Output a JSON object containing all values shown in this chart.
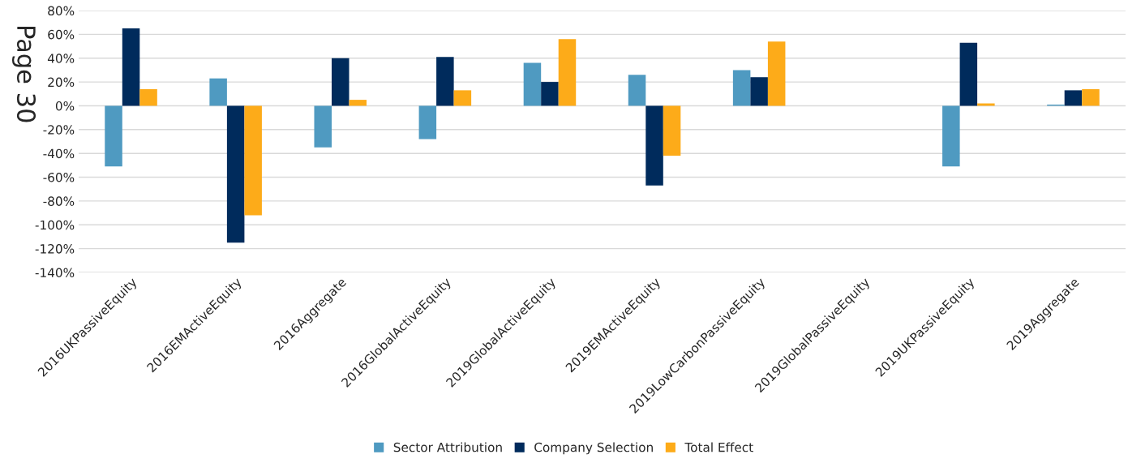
{
  "chart_data": {
    "type": "bar",
    "categories": [
      "2016UKPassiveEquity",
      "2016EMActiveEquity",
      "2016Aggregate",
      "2016GlobalActiveEquity",
      "2019GlobalActiveEquity",
      "2019EMActiveEquity",
      "2019LowCarbonPassiveEquity",
      "2019GlobalPassiveEquity",
      "2019UKPassiveEquity",
      "2019Aggregate"
    ],
    "series": [
      {
        "name": "Sector Attribution",
        "color": "#4f9ac1",
        "values": [
          -51,
          23,
          -35,
          -28,
          36,
          26,
          30,
          null,
          -51,
          1
        ]
      },
      {
        "name": "Company Selection",
        "color": "#002b5c",
        "values": [
          65,
          -115,
          40,
          41,
          20,
          -67,
          24,
          null,
          53,
          13
        ]
      },
      {
        "name": "Total Effect",
        "color": "#fdab19",
        "values": [
          14,
          -92,
          5,
          13,
          56,
          -42,
          54,
          null,
          2,
          14
        ]
      }
    ],
    "ylim": [
      -140,
      80
    ],
    "yticks": [
      {
        "value": -140,
        "label": "-140%"
      },
      {
        "value": -120,
        "label": "-120%"
      },
      {
        "value": -100,
        "label": "-100%"
      },
      {
        "value": -80,
        "label": "-80%"
      },
      {
        "value": -60,
        "label": "-60%"
      },
      {
        "value": -40,
        "label": "-40%"
      },
      {
        "value": -20,
        "label": "-20%"
      },
      {
        "value": 0,
        "label": "0%"
      },
      {
        "value": 20,
        "label": "20%"
      },
      {
        "value": 40,
        "label": "40%"
      },
      {
        "value": 60,
        "label": "60%"
      },
      {
        "value": 80,
        "label": "80%"
      }
    ],
    "grid": "y",
    "legend": "bottom",
    "annotations": [
      "Page 30"
    ]
  }
}
